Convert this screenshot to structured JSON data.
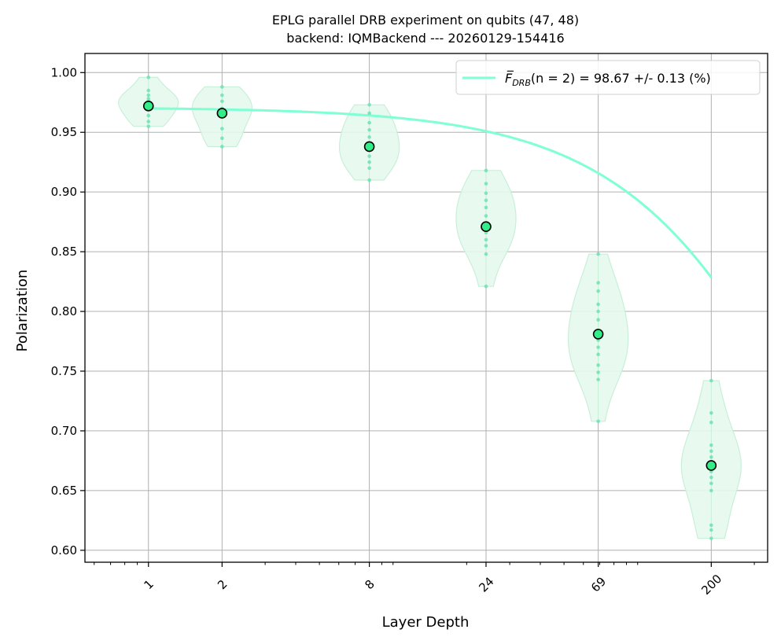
{
  "chart_data": {
    "type": "scatter",
    "title_line1": "EPLG parallel DRB experiment on qubits (47, 48)",
    "title_line2": "backend: IQMBackend --- 20260129-154416",
    "xlabel": "Layer Depth",
    "ylabel": "Polarization",
    "x_scale": "log",
    "xlim": [
      0.55,
      340
    ],
    "ylim": [
      0.59,
      1.016
    ],
    "grid": true,
    "x_ticks": [
      1,
      2,
      8,
      24,
      69,
      200
    ],
    "x_tick_labels": [
      "1",
      "2",
      "8",
      "24",
      "69",
      "200"
    ],
    "y_ticks": [
      0.6,
      0.65,
      0.7,
      0.75,
      0.8,
      0.85,
      0.9,
      0.95,
      1.0
    ],
    "y_tick_labels": [
      "0.60",
      "0.65",
      "0.70",
      "0.75",
      "0.80",
      "0.85",
      "0.90",
      "0.95",
      "1.00"
    ],
    "legend": {
      "placement": "top-right",
      "symbol": "F̅",
      "subscript": "DRB",
      "math": "(n = 2)",
      "rest": " = 98.67 +/- 0.13 (%)"
    },
    "colors": {
      "fit": "#7fffd4",
      "violin_fill": "#e6faee",
      "violin_edge": "#c8efd8",
      "sample_points": "#66e0b0",
      "mean_marker": "#33ee88",
      "mean_edge": "#000000",
      "grid": "#b0b0b0"
    },
    "fit": {
      "A": 0.97,
      "B": 0.5,
      "p": 0.9982,
      "offset": 0.5
    },
    "series": [
      {
        "depth": 1,
        "mean": 0.972,
        "samples": [
          0.996,
          0.985,
          0.981,
          0.976,
          0.97,
          0.964,
          0.959,
          0.955,
          0.978,
          0.972
        ]
      },
      {
        "depth": 2,
        "mean": 0.966,
        "samples": [
          0.988,
          0.981,
          0.976,
          0.97,
          0.963,
          0.953,
          0.945,
          0.938,
          0.967
        ]
      },
      {
        "depth": 8,
        "mean": 0.938,
        "samples": [
          0.973,
          0.966,
          0.958,
          0.952,
          0.946,
          0.941,
          0.935,
          0.93,
          0.925,
          0.92,
          0.91
        ]
      },
      {
        "depth": 24,
        "mean": 0.871,
        "samples": [
          0.918,
          0.907,
          0.899,
          0.893,
          0.887,
          0.88,
          0.874,
          0.866,
          0.86,
          0.855,
          0.848,
          0.821
        ]
      },
      {
        "depth": 69,
        "mean": 0.781,
        "samples": [
          0.848,
          0.824,
          0.817,
          0.806,
          0.8,
          0.793,
          0.782,
          0.776,
          0.77,
          0.764,
          0.755,
          0.749,
          0.743,
          0.708
        ]
      },
      {
        "depth": 200,
        "mean": 0.671,
        "samples": [
          0.742,
          0.715,
          0.707,
          0.688,
          0.683,
          0.678,
          0.672,
          0.666,
          0.661,
          0.656,
          0.65,
          0.621,
          0.617,
          0.61
        ]
      }
    ]
  }
}
